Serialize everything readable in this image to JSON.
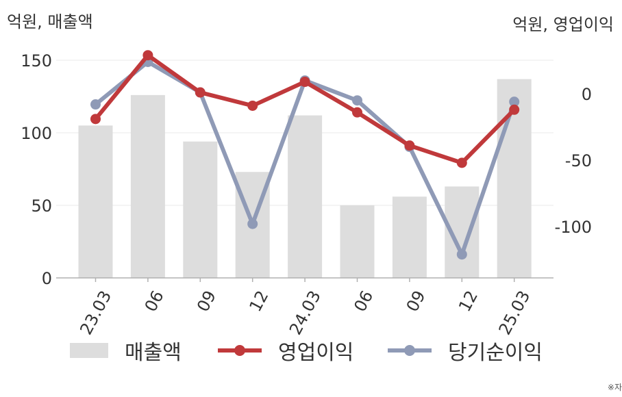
{
  "units": {
    "left": "억원, 매출액",
    "right": "억원, 영업이익"
  },
  "source_note": "※자",
  "chart_data": {
    "type": "bar+line",
    "categories": [
      "23.03",
      "06",
      "09",
      "12",
      "24.03",
      "06",
      "09",
      "12",
      "25.03"
    ],
    "y_left": {
      "ticks": [
        0,
        50,
        100,
        150
      ],
      "range": [
        0,
        160
      ]
    },
    "y_right": {
      "ticks": [
        0,
        -50,
        -100
      ],
      "range": [
        -140,
        30
      ]
    },
    "series": [
      {
        "name": "매출액",
        "kind": "bar",
        "axis": "left",
        "color": "#dddddd",
        "values": [
          105,
          126,
          94,
          73,
          112,
          50,
          56,
          63,
          137
        ]
      },
      {
        "name": "영업이익",
        "kind": "line",
        "axis": "right",
        "color": "#c0393b",
        "values": [
          -19,
          29,
          1,
          -9,
          9,
          -14,
          -39,
          -52,
          -12
        ]
      },
      {
        "name": "당기순이익",
        "kind": "line",
        "axis": "right",
        "color": "#8f9ab6",
        "values": [
          -8,
          24,
          1,
          -98,
          10,
          -5,
          -40,
          -121,
          -6
        ]
      }
    ]
  },
  "legend": [
    {
      "label": "매출액"
    },
    {
      "label": "영업이익"
    },
    {
      "label": "당기순이익"
    }
  ]
}
